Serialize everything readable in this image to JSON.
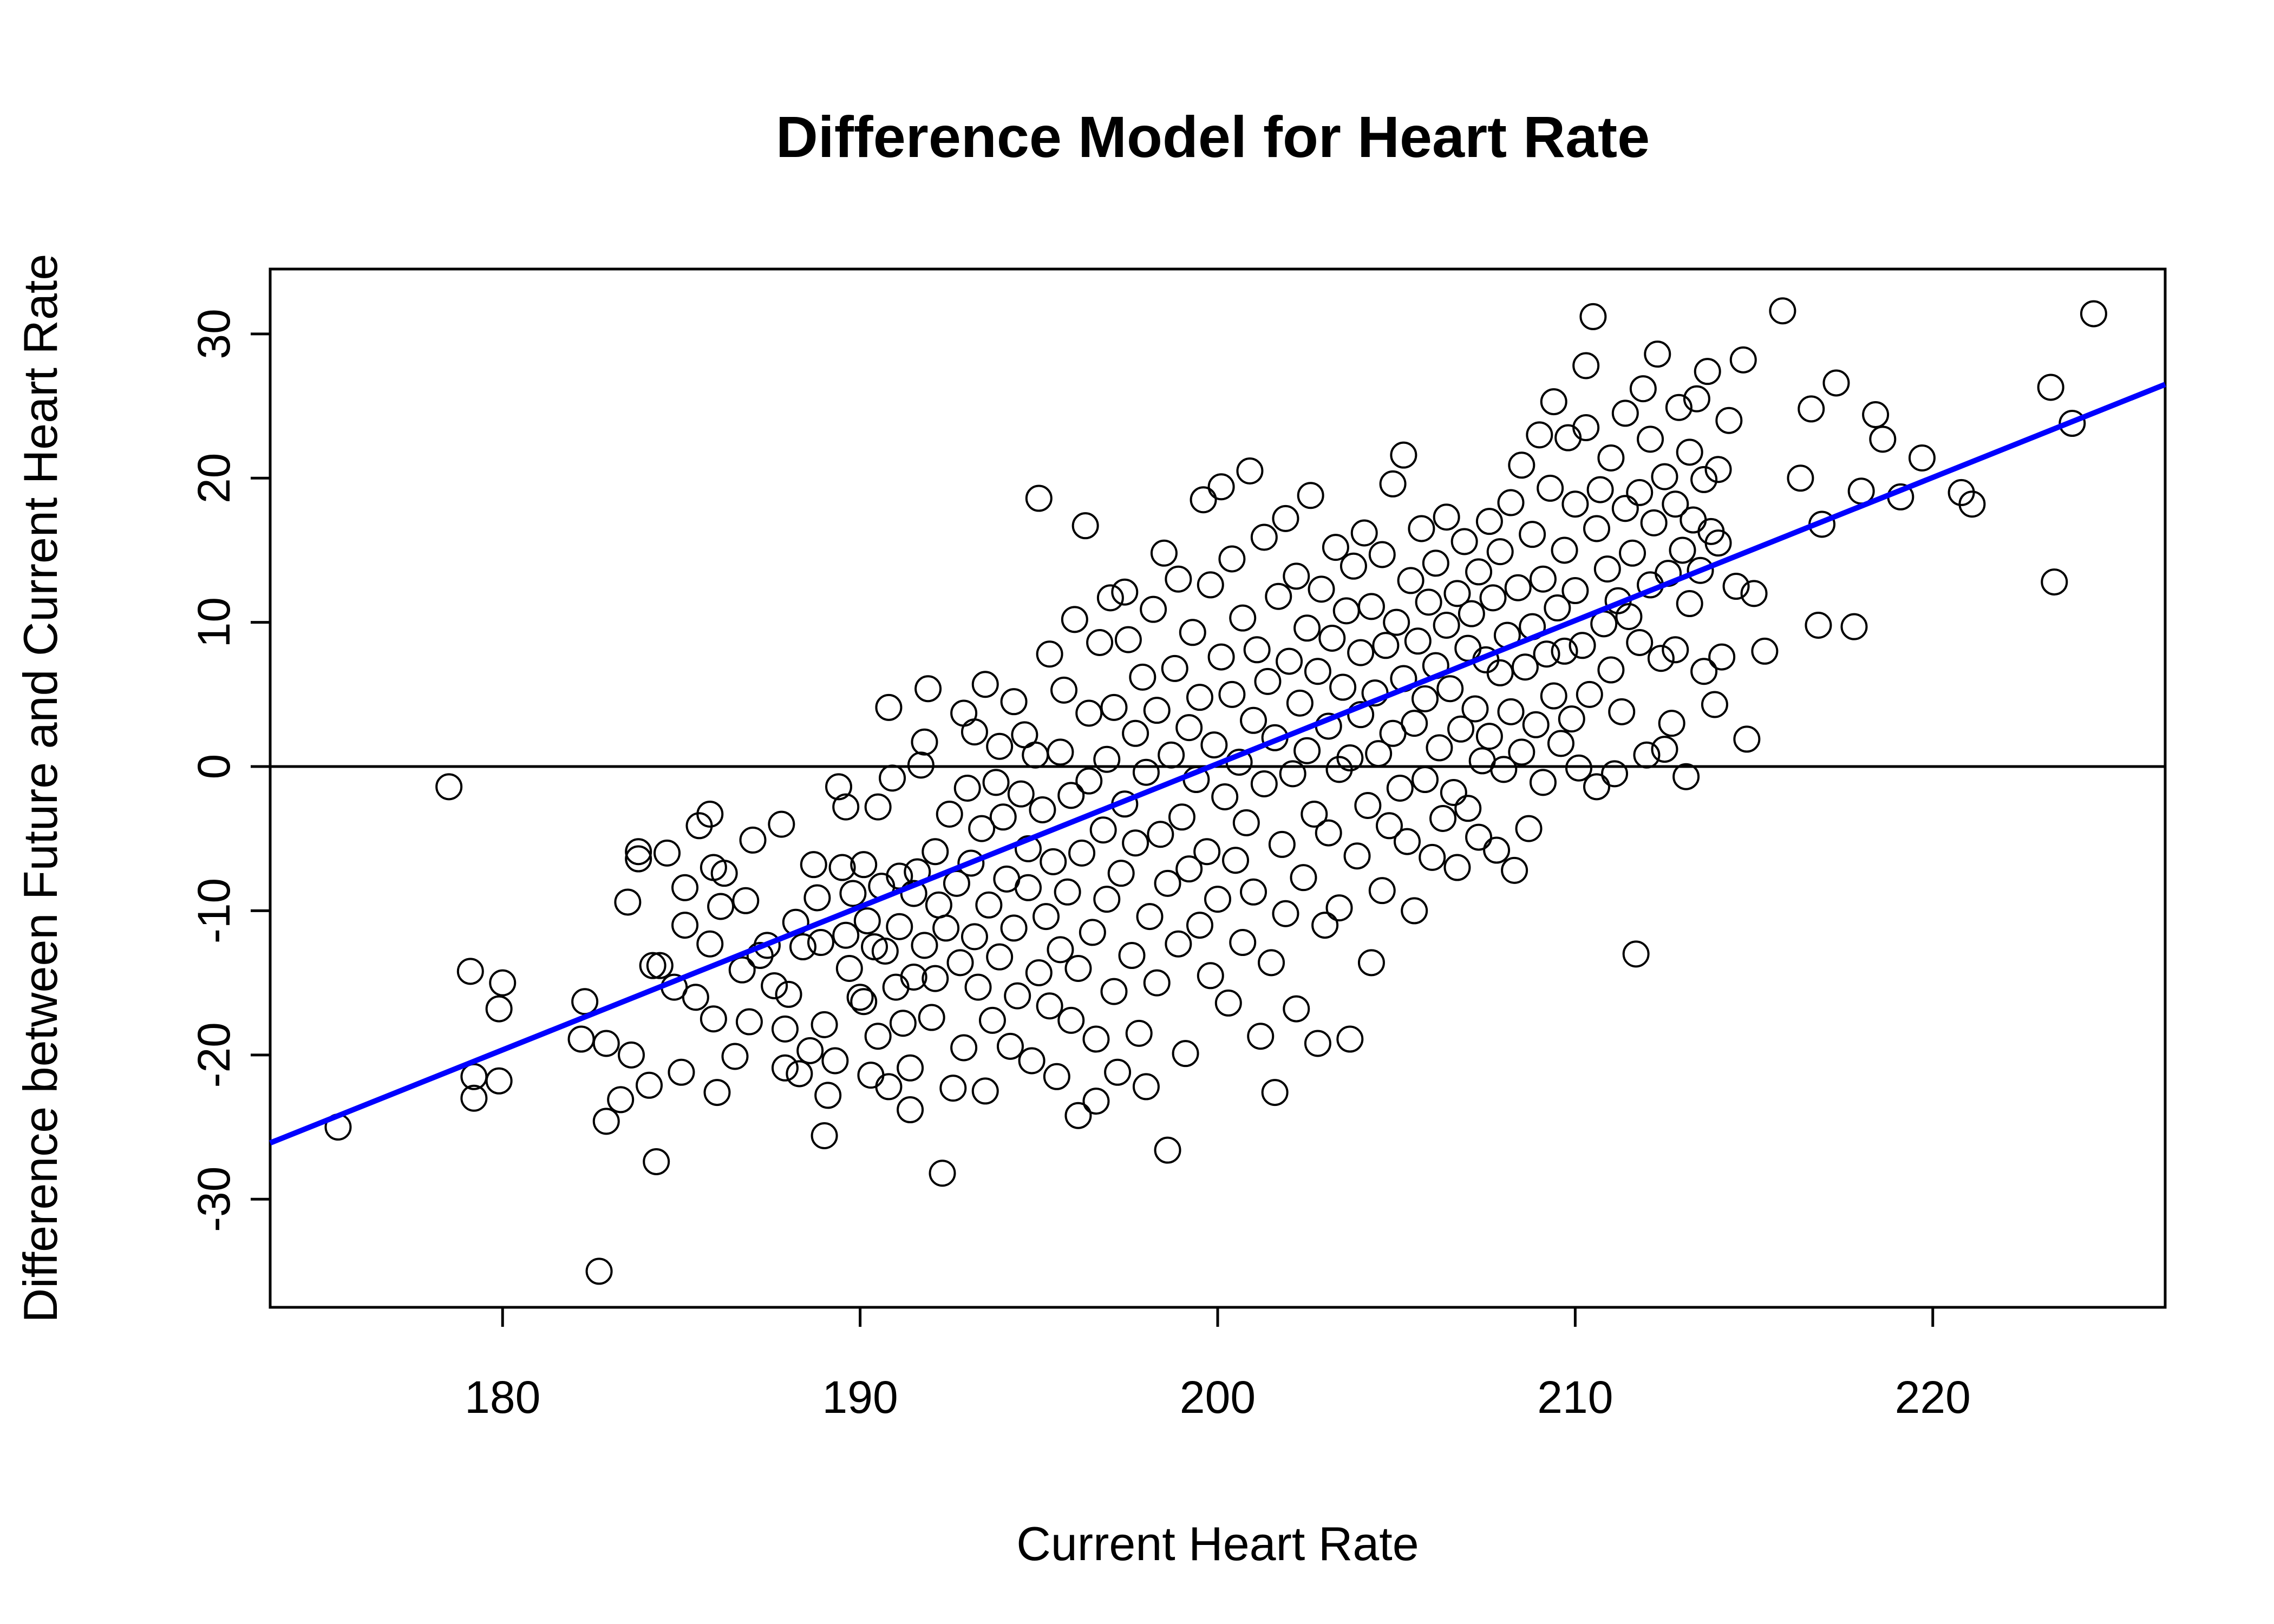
{
  "chart_data": {
    "type": "scatter",
    "title": "Difference Model for Heart Rate",
    "xlabel": "Current Heart Rate",
    "ylabel": "Difference between Future and Current Heart Rate",
    "xlim": [
      173.5,
      226.5
    ],
    "ylim": [
      -37.5,
      34.5
    ],
    "x_ticks": [
      180,
      190,
      200,
      210,
      220
    ],
    "y_ticks": [
      -30,
      -20,
      -10,
      0,
      10,
      20,
      30
    ],
    "grid": false,
    "legend": "none",
    "reference_line": {
      "y": 0,
      "color": "#000000"
    },
    "fit_line": {
      "color": "#0000ff",
      "x": [
        173.5,
        226.5
      ],
      "y": [
        -26.1,
        26.5
      ]
    },
    "points": [
      [
        175.4,
        -25.0
      ],
      [
        178.5,
        -1.4
      ],
      [
        179.1,
        -14.2
      ],
      [
        179.2,
        -21.5
      ],
      [
        179.2,
        -23.0
      ],
      [
        179.9,
        -21.8
      ],
      [
        180.0,
        -15.0
      ],
      [
        179.9,
        -16.8
      ],
      [
        182.3,
        -16.3
      ],
      [
        182.2,
        -18.9
      ],
      [
        182.7,
        -35.0
      ],
      [
        182.9,
        -19.2
      ],
      [
        182.9,
        -24.6
      ],
      [
        183.3,
        -23.1
      ],
      [
        183.5,
        -9.4
      ],
      [
        183.6,
        -20.0
      ],
      [
        183.8,
        -5.9
      ],
      [
        183.8,
        -6.4
      ],
      [
        184.1,
        -22.1
      ],
      [
        184.2,
        -13.8
      ],
      [
        184.4,
        -13.8
      ],
      [
        184.3,
        -27.4
      ],
      [
        184.6,
        -6.0
      ],
      [
        184.8,
        -15.3
      ],
      [
        185.0,
        -21.2
      ],
      [
        185.1,
        -8.4
      ],
      [
        185.1,
        -11.0
      ],
      [
        185.4,
        -16.0
      ],
      [
        185.5,
        -4.1
      ],
      [
        185.8,
        -3.3
      ],
      [
        185.8,
        -12.3
      ],
      [
        185.9,
        -17.5
      ],
      [
        185.9,
        -7.0
      ],
      [
        186.0,
        -22.6
      ],
      [
        186.1,
        -9.7
      ],
      [
        186.2,
        -7.4
      ],
      [
        186.5,
        -20.1
      ],
      [
        186.7,
        -14.1
      ],
      [
        186.8,
        -9.3
      ],
      [
        186.9,
        -17.7
      ],
      [
        187.0,
        -5.1
      ],
      [
        187.2,
        -13.1
      ],
      [
        187.4,
        -12.4
      ],
      [
        187.6,
        -15.2
      ],
      [
        187.8,
        -4.0
      ],
      [
        187.9,
        -18.2
      ],
      [
        187.9,
        -20.9
      ],
      [
        188.0,
        -15.8
      ],
      [
        188.2,
        -10.8
      ],
      [
        188.3,
        -21.3
      ],
      [
        188.4,
        -12.5
      ],
      [
        188.6,
        -19.7
      ],
      [
        188.7,
        -6.8
      ],
      [
        188.8,
        -9.1
      ],
      [
        188.9,
        -12.2
      ],
      [
        189.0,
        -25.6
      ],
      [
        189.1,
        -22.8
      ],
      [
        189.0,
        -17.9
      ],
      [
        189.3,
        -20.4
      ],
      [
        189.4,
        -1.4
      ],
      [
        189.5,
        -7.0
      ],
      [
        189.6,
        -2.8
      ],
      [
        189.6,
        -11.7
      ],
      [
        189.7,
        -14.0
      ],
      [
        189.8,
        -8.8
      ],
      [
        190.0,
        -16.0
      ],
      [
        190.1,
        -16.3
      ],
      [
        190.1,
        -6.8
      ],
      [
        190.2,
        -10.7
      ],
      [
        190.3,
        -21.4
      ],
      [
        190.4,
        -12.5
      ],
      [
        190.5,
        -18.7
      ],
      [
        190.5,
        -2.8
      ],
      [
        190.6,
        -8.3
      ],
      [
        190.7,
        -12.8
      ],
      [
        190.8,
        -22.2
      ],
      [
        190.8,
        4.1
      ],
      [
        190.9,
        -0.8
      ],
      [
        191.0,
        -15.3
      ],
      [
        191.1,
        -7.6
      ],
      [
        191.1,
        -11.1
      ],
      [
        191.2,
        -17.8
      ],
      [
        191.4,
        -23.8
      ],
      [
        191.4,
        -20.9
      ],
      [
        191.5,
        -14.6
      ],
      [
        191.5,
        -8.8
      ],
      [
        191.6,
        -7.3
      ],
      [
        191.7,
        0.1
      ],
      [
        191.8,
        -12.4
      ],
      [
        191.8,
        1.7
      ],
      [
        191.9,
        5.4
      ],
      [
        192.0,
        -17.4
      ],
      [
        192.1,
        -5.9
      ],
      [
        192.1,
        -14.7
      ],
      [
        192.2,
        -9.6
      ],
      [
        192.4,
        -11.2
      ],
      [
        192.3,
        -28.2
      ],
      [
        192.5,
        -3.3
      ],
      [
        192.6,
        -22.3
      ],
      [
        192.7,
        -8.1
      ],
      [
        192.8,
        -13.6
      ],
      [
        192.9,
        -19.5
      ],
      [
        192.9,
        3.7
      ],
      [
        193.0,
        -1.5
      ],
      [
        193.1,
        -6.7
      ],
      [
        193.2,
        -11.8
      ],
      [
        193.2,
        2.4
      ],
      [
        193.3,
        -15.3
      ],
      [
        193.4,
        -4.3
      ],
      [
        193.5,
        -22.5
      ],
      [
        193.5,
        5.7
      ],
      [
        193.6,
        -9.6
      ],
      [
        193.7,
        -17.6
      ],
      [
        193.8,
        -1.1
      ],
      [
        193.9,
        1.4
      ],
      [
        193.9,
        -13.2
      ],
      [
        194.0,
        -3.5
      ],
      [
        194.1,
        -7.8
      ],
      [
        194.2,
        -19.4
      ],
      [
        194.3,
        4.5
      ],
      [
        194.3,
        -11.2
      ],
      [
        194.4,
        -15.9
      ],
      [
        194.5,
        -1.9
      ],
      [
        194.6,
        2.2
      ],
      [
        194.7,
        -5.7
      ],
      [
        194.7,
        -8.4
      ],
      [
        194.8,
        -20.4
      ],
      [
        194.9,
        0.8
      ],
      [
        195.0,
        -14.3
      ],
      [
        195.0,
        18.6
      ],
      [
        195.1,
        -3.0
      ],
      [
        195.2,
        -10.4
      ],
      [
        195.3,
        7.8
      ],
      [
        195.3,
        -16.6
      ],
      [
        195.4,
        -6.6
      ],
      [
        195.5,
        -21.5
      ],
      [
        195.6,
        1.0
      ],
      [
        195.6,
        -12.7
      ],
      [
        195.7,
        5.3
      ],
      [
        195.8,
        -8.7
      ],
      [
        195.9,
        -17.6
      ],
      [
        195.9,
        -2.0
      ],
      [
        196.0,
        10.2
      ],
      [
        196.1,
        -24.2
      ],
      [
        196.1,
        -14.0
      ],
      [
        196.2,
        -6.0
      ],
      [
        196.3,
        16.7
      ],
      [
        196.4,
        -1.0
      ],
      [
        196.4,
        3.7
      ],
      [
        196.5,
        -11.5
      ],
      [
        196.6,
        -23.2
      ],
      [
        196.6,
        -18.9
      ],
      [
        196.7,
        8.6
      ],
      [
        196.8,
        -4.4
      ],
      [
        196.9,
        0.5
      ],
      [
        196.9,
        -9.2
      ],
      [
        197.0,
        11.7
      ],
      [
        197.1,
        -15.6
      ],
      [
        197.1,
        4.1
      ],
      [
        197.2,
        -21.2
      ],
      [
        197.3,
        -7.4
      ],
      [
        197.4,
        -2.6
      ],
      [
        197.4,
        12.1
      ],
      [
        197.5,
        8.8
      ],
      [
        197.6,
        -13.1
      ],
      [
        197.7,
        2.3
      ],
      [
        197.7,
        -5.3
      ],
      [
        197.8,
        -18.5
      ],
      [
        197.9,
        6.2
      ],
      [
        198.0,
        -22.2
      ],
      [
        198.0,
        -0.4
      ],
      [
        198.1,
        -10.4
      ],
      [
        198.2,
        10.9
      ],
      [
        198.3,
        3.9
      ],
      [
        198.3,
        -15.0
      ],
      [
        198.4,
        -4.7
      ],
      [
        198.5,
        14.8
      ],
      [
        198.6,
        -26.6
      ],
      [
        198.6,
        -8.1
      ],
      [
        198.7,
        0.8
      ],
      [
        198.8,
        6.8
      ],
      [
        198.9,
        -12.3
      ],
      [
        198.9,
        13.0
      ],
      [
        199.0,
        -3.5
      ],
      [
        199.1,
        -19.9
      ],
      [
        199.2,
        2.7
      ],
      [
        199.2,
        -7.1
      ],
      [
        199.3,
        9.3
      ],
      [
        199.4,
        -0.9
      ],
      [
        199.5,
        -11.0
      ],
      [
        199.5,
        4.8
      ],
      [
        199.6,
        18.5
      ],
      [
        199.7,
        -5.9
      ],
      [
        199.8,
        12.6
      ],
      [
        199.8,
        -14.5
      ],
      [
        199.9,
        1.5
      ],
      [
        200.0,
        -9.2
      ],
      [
        200.1,
        7.6
      ],
      [
        200.1,
        19.4
      ],
      [
        200.2,
        -2.1
      ],
      [
        200.3,
        -16.4
      ],
      [
        200.4,
        5.0
      ],
      [
        200.4,
        14.4
      ],
      [
        200.5,
        -6.5
      ],
      [
        200.6,
        0.3
      ],
      [
        200.7,
        10.3
      ],
      [
        200.7,
        -12.2
      ],
      [
        200.8,
        -3.9
      ],
      [
        200.9,
        20.5
      ],
      [
        201.0,
        3.2
      ],
      [
        201.0,
        -8.7
      ],
      [
        201.1,
        8.1
      ],
      [
        201.2,
        -18.7
      ],
      [
        201.3,
        15.9
      ],
      [
        201.3,
        -1.2
      ],
      [
        201.4,
        5.9
      ],
      [
        201.5,
        -13.6
      ],
      [
        201.6,
        -22.6
      ],
      [
        201.6,
        2.0
      ],
      [
        201.7,
        11.8
      ],
      [
        201.8,
        -5.4
      ],
      [
        201.9,
        17.2
      ],
      [
        201.9,
        -10.2
      ],
      [
        202.0,
        7.3
      ],
      [
        202.1,
        -0.5
      ],
      [
        202.2,
        13.2
      ],
      [
        202.2,
        -16.8
      ],
      [
        202.3,
        4.4
      ],
      [
        202.4,
        -7.7
      ],
      [
        202.5,
        9.6
      ],
      [
        202.5,
        1.1
      ],
      [
        202.6,
        18.8
      ],
      [
        202.7,
        -3.3
      ],
      [
        202.8,
        -19.2
      ],
      [
        202.8,
        6.6
      ],
      [
        202.9,
        12.3
      ],
      [
        203.0,
        -11.0
      ],
      [
        203.1,
        2.8
      ],
      [
        203.1,
        -4.6
      ],
      [
        203.2,
        8.9
      ],
      [
        203.3,
        15.2
      ],
      [
        203.4,
        -0.2
      ],
      [
        203.4,
        -9.8
      ],
      [
        203.5,
        5.5
      ],
      [
        203.6,
        10.8
      ],
      [
        203.7,
        -18.9
      ],
      [
        203.7,
        0.6
      ],
      [
        203.8,
        13.9
      ],
      [
        203.9,
        -6.2
      ],
      [
        204.0,
        3.6
      ],
      [
        204.0,
        7.9
      ],
      [
        204.1,
        16.2
      ],
      [
        204.2,
        -2.7
      ],
      [
        204.3,
        -13.6
      ],
      [
        204.3,
        11.1
      ],
      [
        204.4,
        5.1
      ],
      [
        204.5,
        0.9
      ],
      [
        204.6,
        -8.6
      ],
      [
        204.6,
        14.7
      ],
      [
        204.7,
        8.4
      ],
      [
        204.8,
        -4.1
      ],
      [
        204.9,
        2.3
      ],
      [
        204.9,
        19.6
      ],
      [
        205.0,
        10.0
      ],
      [
        205.1,
        -1.5
      ],
      [
        205.2,
        6.1
      ],
      [
        205.2,
        21.6
      ],
      [
        205.3,
        -5.2
      ],
      [
        205.4,
        12.9
      ],
      [
        205.5,
        3.0
      ],
      [
        205.5,
        -10.0
      ],
      [
        205.6,
        8.7
      ],
      [
        205.7,
        16.5
      ],
      [
        205.8,
        -0.9
      ],
      [
        205.8,
        4.7
      ],
      [
        205.9,
        11.4
      ],
      [
        206.0,
        -6.3
      ],
      [
        206.1,
        7.0
      ],
      [
        206.1,
        14.1
      ],
      [
        206.2,
        1.3
      ],
      [
        206.3,
        -3.6
      ],
      [
        206.4,
        9.8
      ],
      [
        206.4,
        17.3
      ],
      [
        206.5,
        5.4
      ],
      [
        206.6,
        -1.8
      ],
      [
        206.7,
        12.0
      ],
      [
        206.7,
        -7.0
      ],
      [
        206.8,
        2.6
      ],
      [
        206.9,
        15.6
      ],
      [
        207.0,
        8.2
      ],
      [
        207.0,
        -2.9
      ],
      [
        207.1,
        10.6
      ],
      [
        207.2,
        4.0
      ],
      [
        207.3,
        13.5
      ],
      [
        207.3,
        -4.9
      ],
      [
        207.4,
        0.4
      ],
      [
        207.5,
        7.4
      ],
      [
        207.6,
        17.0
      ],
      [
        207.6,
        2.1
      ],
      [
        207.7,
        11.7
      ],
      [
        207.8,
        -5.8
      ],
      [
        207.9,
        6.5
      ],
      [
        207.9,
        14.9
      ],
      [
        208.0,
        -0.2
      ],
      [
        208.1,
        9.1
      ],
      [
        208.2,
        3.8
      ],
      [
        208.2,
        18.3
      ],
      [
        208.3,
        -7.2
      ],
      [
        208.4,
        12.4
      ],
      [
        208.5,
        1.0
      ],
      [
        208.5,
        20.9
      ],
      [
        208.6,
        6.9
      ],
      [
        208.7,
        -4.3
      ],
      [
        208.8,
        16.1
      ],
      [
        208.8,
        9.7
      ],
      [
        208.9,
        2.9
      ],
      [
        209.0,
        23.0
      ],
      [
        209.1,
        13.0
      ],
      [
        209.1,
        -1.1
      ],
      [
        209.2,
        7.8
      ],
      [
        209.3,
        19.3
      ],
      [
        209.4,
        4.9
      ],
      [
        209.4,
        25.3
      ],
      [
        209.5,
        11.0
      ],
      [
        209.6,
        1.6
      ],
      [
        209.7,
        15.0
      ],
      [
        209.7,
        8.0
      ],
      [
        209.8,
        22.8
      ],
      [
        209.9,
        3.3
      ],
      [
        210.0,
        18.2
      ],
      [
        210.0,
        12.2
      ],
      [
        210.1,
        -0.1
      ],
      [
        210.2,
        8.4
      ],
      [
        210.3,
        27.8
      ],
      [
        210.3,
        23.5
      ],
      [
        210.4,
        5.0
      ],
      [
        210.5,
        31.2
      ],
      [
        210.6,
        16.5
      ],
      [
        210.6,
        -1.4
      ],
      [
        210.7,
        19.2
      ],
      [
        210.8,
        9.9
      ],
      [
        210.9,
        13.7
      ],
      [
        211.0,
        6.7
      ],
      [
        211.0,
        21.4
      ],
      [
        211.1,
        -0.5
      ],
      [
        211.2,
        11.5
      ],
      [
        211.3,
        3.8
      ],
      [
        211.4,
        17.9
      ],
      [
        211.4,
        24.5
      ],
      [
        211.5,
        10.4
      ],
      [
        211.6,
        14.8
      ],
      [
        211.7,
        -13.0
      ],
      [
        211.8,
        19.0
      ],
      [
        211.8,
        8.6
      ],
      [
        211.9,
        26.2
      ],
      [
        212.0,
        0.8
      ],
      [
        212.1,
        12.6
      ],
      [
        212.1,
        22.7
      ],
      [
        212.2,
        16.9
      ],
      [
        212.3,
        28.6
      ],
      [
        212.4,
        7.5
      ],
      [
        212.5,
        20.1
      ],
      [
        212.5,
        1.2
      ],
      [
        212.6,
        13.4
      ],
      [
        212.7,
        3.0
      ],
      [
        212.8,
        18.2
      ],
      [
        212.8,
        8.1
      ],
      [
        212.9,
        24.9
      ],
      [
        213.0,
        15.0
      ],
      [
        213.1,
        -0.7
      ],
      [
        213.2,
        21.8
      ],
      [
        213.2,
        11.3
      ],
      [
        213.3,
        17.1
      ],
      [
        213.4,
        25.5
      ],
      [
        213.5,
        13.6
      ],
      [
        213.6,
        6.6
      ],
      [
        213.6,
        19.9
      ],
      [
        213.7,
        27.4
      ],
      [
        213.8,
        16.3
      ],
      [
        213.9,
        4.3
      ],
      [
        214.0,
        20.6
      ],
      [
        214.0,
        15.5
      ],
      [
        214.1,
        7.6
      ],
      [
        214.3,
        24.0
      ],
      [
        214.5,
        12.5
      ],
      [
        214.7,
        28.2
      ],
      [
        214.8,
        1.9
      ],
      [
        215.0,
        12.0
      ],
      [
        215.3,
        8.0
      ],
      [
        215.8,
        31.6
      ],
      [
        216.3,
        20.0
      ],
      [
        216.6,
        24.8
      ],
      [
        216.8,
        9.8
      ],
      [
        216.9,
        16.8
      ],
      [
        217.3,
        26.6
      ],
      [
        217.8,
        9.7
      ],
      [
        218.0,
        19.1
      ],
      [
        218.4,
        24.4
      ],
      [
        218.6,
        22.7
      ],
      [
        219.1,
        18.7
      ],
      [
        219.7,
        21.4
      ],
      [
        220.8,
        19.0
      ],
      [
        221.1,
        18.2
      ],
      [
        223.3,
        26.3
      ],
      [
        223.4,
        12.8
      ],
      [
        223.9,
        23.8
      ],
      [
        224.5,
        31.4
      ]
    ]
  }
}
